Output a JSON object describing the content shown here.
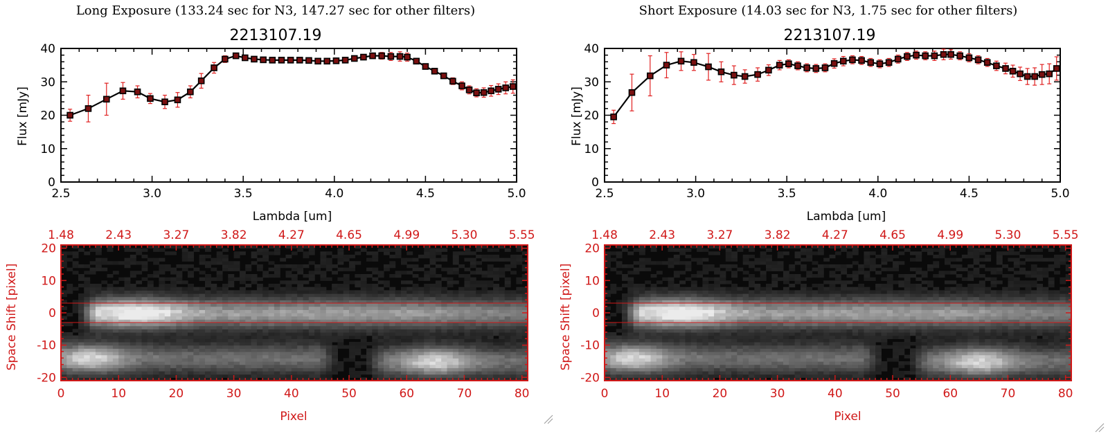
{
  "colors": {
    "axis": "#000000",
    "spectrum": "#000000",
    "errorbar": "#e02020",
    "marker_fill": "#7a1010",
    "image_axis": "#d01818",
    "aperture_line": "#d01818",
    "background": "#ffffff"
  },
  "panels": [
    {
      "exposure_title": "Long Exposure (133.24 sec for N3, 147.27 sec for other filters)",
      "chart_title": "2213107.19",
      "xlabel": "Lambda [um]",
      "ylabel": "Flux [mJy]",
      "image_xlabel": "Pixel",
      "image_ylabel": "Space Shift [pixel]"
    },
    {
      "exposure_title": "Short Exposure (14.03 sec for N3, 1.75 sec for other filters)",
      "chart_title": "2213107.19",
      "xlabel": "Lambda [um]",
      "ylabel": "Flux [mJy]",
      "image_xlabel": "Pixel",
      "image_ylabel": "Space Shift [pixel]"
    }
  ],
  "chart_data": [
    {
      "type": "line",
      "title": "2213107.19",
      "xlabel": "Lambda [um]",
      "ylabel": "Flux [mJy]",
      "xlim": [
        2.5,
        5.0
      ],
      "ylim": [
        0,
        40
      ],
      "xticks": [
        2.5,
        3.0,
        3.5,
        4.0,
        4.5,
        5.0
      ],
      "xtick_labels": [
        "2.5",
        "3.0",
        "3.5",
        "4.0",
        "4.5",
        "5.0"
      ],
      "yticks": [
        0,
        10,
        20,
        30,
        40
      ],
      "ytick_labels": [
        "0",
        "10",
        "20",
        "30",
        "40"
      ],
      "series": [
        {
          "name": "Long Exposure",
          "x": [
            2.55,
            2.65,
            2.75,
            2.84,
            2.92,
            2.99,
            3.07,
            3.14,
            3.21,
            3.27,
            3.34,
            3.4,
            3.46,
            3.51,
            3.56,
            3.61,
            3.66,
            3.71,
            3.76,
            3.81,
            3.86,
            3.91,
            3.96,
            4.01,
            4.06,
            4.11,
            4.16,
            4.21,
            4.26,
            4.31,
            4.36,
            4.4,
            4.45,
            4.5,
            4.55,
            4.6,
            4.65,
            4.7,
            4.74,
            4.78,
            4.82,
            4.86,
            4.9,
            4.94,
            4.98
          ],
          "y": [
            20.0,
            22.0,
            24.8,
            27.3,
            27.0,
            25.0,
            24.0,
            24.6,
            27.0,
            30.3,
            34.2,
            36.8,
            37.8,
            37.2,
            36.8,
            36.6,
            36.5,
            36.5,
            36.5,
            36.5,
            36.4,
            36.2,
            36.2,
            36.3,
            36.5,
            37.0,
            37.4,
            37.8,
            37.8,
            37.6,
            37.6,
            37.4,
            36.2,
            34.6,
            33.2,
            31.8,
            30.2,
            28.8,
            27.6,
            26.7,
            26.8,
            27.3,
            27.8,
            28.2,
            28.6
          ],
          "err": [
            1.8,
            4.0,
            4.8,
            2.5,
            1.8,
            1.5,
            2.0,
            2.2,
            1.8,
            2.2,
            1.6,
            1.0,
            0.8,
            0.6,
            0.6,
            0.6,
            0.6,
            0.6,
            0.6,
            0.6,
            0.6,
            0.6,
            0.6,
            0.6,
            0.6,
            0.6,
            0.8,
            0.8,
            1.0,
            1.2,
            1.4,
            1.2,
            0.8,
            0.8,
            0.8,
            0.8,
            1.0,
            1.2,
            1.2,
            1.2,
            1.4,
            1.6,
            1.6,
            1.8,
            2.0
          ]
        }
      ]
    },
    {
      "type": "line",
      "title": "2213107.19",
      "xlabel": "Lambda [um]",
      "ylabel": "Flux [mJy]",
      "xlim": [
        2.5,
        5.0
      ],
      "ylim": [
        0,
        40
      ],
      "xticks": [
        2.5,
        3.0,
        3.5,
        4.0,
        4.5,
        5.0
      ],
      "xtick_labels": [
        "2.5",
        "3.0",
        "3.5",
        "4.0",
        "4.5",
        "5.0"
      ],
      "yticks": [
        0,
        10,
        20,
        30,
        40
      ],
      "ytick_labels": [
        "0",
        "10",
        "20",
        "30",
        "40"
      ],
      "series": [
        {
          "name": "Short Exposure",
          "x": [
            2.55,
            2.65,
            2.75,
            2.84,
            2.92,
            2.99,
            3.07,
            3.14,
            3.21,
            3.27,
            3.34,
            3.4,
            3.46,
            3.51,
            3.56,
            3.61,
            3.66,
            3.71,
            3.76,
            3.81,
            3.86,
            3.91,
            3.96,
            4.01,
            4.06,
            4.11,
            4.16,
            4.21,
            4.26,
            4.31,
            4.36,
            4.4,
            4.45,
            4.5,
            4.55,
            4.6,
            4.65,
            4.7,
            4.74,
            4.78,
            4.82,
            4.86,
            4.9,
            4.94,
            4.98
          ],
          "y": [
            19.5,
            26.8,
            31.8,
            35.0,
            36.2,
            35.8,
            34.5,
            33.0,
            32.0,
            31.6,
            32.2,
            33.5,
            35.0,
            35.4,
            34.8,
            34.2,
            34.0,
            34.2,
            35.5,
            36.2,
            36.6,
            36.4,
            35.8,
            35.4,
            35.8,
            36.8,
            37.6,
            38.0,
            37.8,
            37.8,
            38.2,
            38.2,
            37.8,
            37.2,
            36.6,
            35.8,
            34.8,
            34.0,
            33.2,
            32.4,
            31.6,
            31.6,
            32.2,
            32.4,
            34.0
          ],
          "err": [
            2.0,
            5.5,
            6.0,
            3.8,
            2.8,
            2.4,
            4.0,
            3.0,
            2.8,
            2.0,
            2.0,
            1.6,
            1.4,
            1.2,
            1.2,
            1.2,
            1.2,
            1.2,
            1.4,
            1.4,
            1.2,
            1.2,
            1.2,
            1.2,
            1.2,
            1.2,
            1.2,
            1.2,
            1.2,
            1.4,
            1.6,
            1.4,
            1.2,
            1.2,
            1.2,
            1.2,
            1.4,
            1.6,
            1.8,
            2.0,
            2.4,
            2.6,
            3.0,
            3.0,
            3.5
          ]
        }
      ]
    },
    {
      "type": "heatmap",
      "xlabel": "Pixel",
      "ylabel": "Space Shift [pixel]",
      "xlim": [
        0,
        81
      ],
      "ylim": [
        -21,
        21
      ],
      "xticks": [
        0,
        10,
        20,
        30,
        40,
        50,
        60,
        70,
        80
      ],
      "xtick_labels": [
        "0",
        "10",
        "20",
        "30",
        "40",
        "50",
        "60",
        "70",
        "80"
      ],
      "yticks": [
        -20,
        -10,
        0,
        10,
        20
      ],
      "ytick_labels": [
        "-20",
        "-10",
        "0",
        "10",
        "20"
      ],
      "top_axis_label_values": [
        "1.48",
        "2.43",
        "3.27",
        "3.82",
        "4.27",
        "4.65",
        "4.99",
        "5.30",
        "5.55"
      ],
      "aperture_lines": [
        3,
        -3
      ],
      "features": [
        {
          "name": "main trace",
          "y": 0,
          "x_start": 6,
          "x_end": 81,
          "peak_x": 13,
          "width": 3
        },
        {
          "name": "lower left blob",
          "y": -14,
          "x_start": 0,
          "x_end": 45,
          "peak_x": 5,
          "width": 3
        },
        {
          "name": "lower right blob",
          "y": -15,
          "x_start": 56,
          "x_end": 81,
          "peak_x": 65,
          "width": 3
        }
      ]
    }
  ]
}
